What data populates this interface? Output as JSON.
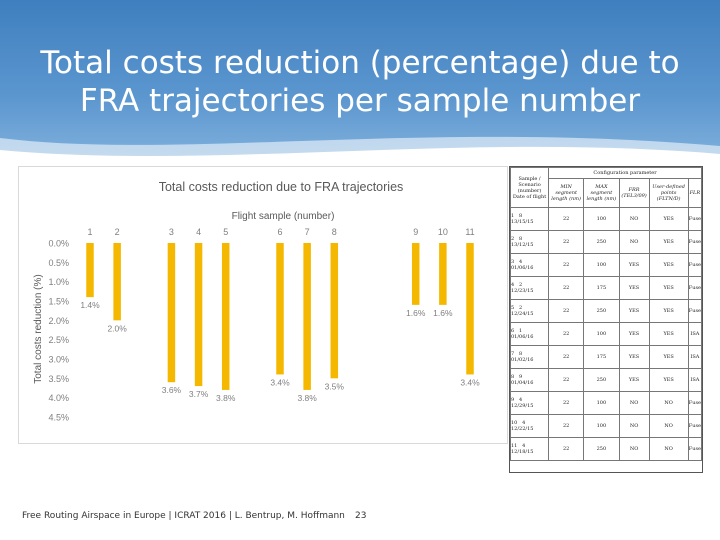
{
  "slide": {
    "title_line1": "Total costs reduction (percentage) due to",
    "title_line2": "FRA trajectories per sample number",
    "footer": "Free Routing Airspace in Europe | ICRAT 2016 | L. Bentrup, M. Hoffmann",
    "page_number": "23"
  },
  "chart_data": {
    "type": "bar",
    "title": "Total costs reduction due to FRA trajectories",
    "xlabel": "Flight sample (number)",
    "ylabel": "Total costs reduction (%)",
    "categories": [
      "1",
      "2",
      "3",
      "4",
      "5",
      "6",
      "7",
      "8",
      "9",
      "10",
      "11"
    ],
    "positions": [
      1,
      2,
      4,
      5,
      6,
      8,
      9,
      10,
      13,
      14,
      15
    ],
    "values": [
      1.4,
      2.0,
      3.6,
      3.7,
      3.8,
      3.4,
      3.8,
      3.5,
      1.6,
      1.6,
      3.4
    ],
    "data_labels": [
      "1.4%",
      "2.0%",
      "3.6%",
      "3.7%",
      "3.8%",
      "3.4%",
      "3.8%",
      "3.5%",
      "1.6%",
      "1.6%",
      "3.4%"
    ],
    "yticks": [
      "0.0%",
      "0.5%",
      "1.0%",
      "1.5%",
      "2.0%",
      "2.5%",
      "3.0%",
      "3.5%",
      "4.0%",
      "4.5%"
    ],
    "ylim": [
      0,
      4.5
    ],
    "y_inverted": true,
    "x_axis_position": "top",
    "grid": false,
    "bar_color": "#f5b800"
  },
  "config_table": {
    "header_left": "Sample / Scenario (number)",
    "header_left_sub": "Date of flight",
    "header_group": "Configuration parameter",
    "columns": [
      "MIN segment length (nm)",
      "MAX segment length (nm)",
      "FRR (TEL3/09)",
      "User-defined points (FLTN/D)",
      "FLR"
    ],
    "rows": [
      {
        "sample": "1",
        "scenario": "8",
        "date": "13/15/15",
        "min": "22",
        "max": "100",
        "frr": "NO",
        "udp": "YES",
        "flr": "Fuse"
      },
      {
        "sample": "2",
        "scenario": "8",
        "date": "13/12/15",
        "min": "22",
        "max": "250",
        "frr": "NO",
        "udp": "YES",
        "flr": "Fuse"
      },
      {
        "sample": "3",
        "scenario": "4",
        "date": "01/06/16",
        "min": "22",
        "max": "100",
        "frr": "YES",
        "udp": "YES",
        "flr": "Fuse"
      },
      {
        "sample": "4",
        "scenario": "2",
        "date": "12/23/15",
        "min": "22",
        "max": "175",
        "frr": "YES",
        "udp": "YES",
        "flr": "Fuse"
      },
      {
        "sample": "5",
        "scenario": "2",
        "date": "12/24/15",
        "min": "22",
        "max": "250",
        "frr": "YES",
        "udp": "YES",
        "flr": "Fuse"
      },
      {
        "sample": "6",
        "scenario": "1",
        "date": "01/06/16",
        "min": "22",
        "max": "100",
        "frr": "YES",
        "udp": "YES",
        "flr": "ISA"
      },
      {
        "sample": "7",
        "scenario": "8",
        "date": "01/02/16",
        "min": "22",
        "max": "175",
        "frr": "YES",
        "udp": "YES",
        "flr": "ISA"
      },
      {
        "sample": "8",
        "scenario": "9",
        "date": "01/04/16",
        "min": "22",
        "max": "250",
        "frr": "YES",
        "udp": "YES",
        "flr": "ISA"
      },
      {
        "sample": "9",
        "scenario": "4",
        "date": "12/29/15",
        "min": "22",
        "max": "100",
        "frr": "NO",
        "udp": "NO",
        "flr": "Fuse"
      },
      {
        "sample": "10",
        "scenario": "4",
        "date": "12/22/15",
        "min": "22",
        "max": "100",
        "frr": "NO",
        "udp": "NO",
        "flr": "Fuse"
      },
      {
        "sample": "11",
        "scenario": "4",
        "date": "12/18/15",
        "min": "22",
        "max": "250",
        "frr": "NO",
        "udp": "NO",
        "flr": "Fuse"
      }
    ]
  }
}
